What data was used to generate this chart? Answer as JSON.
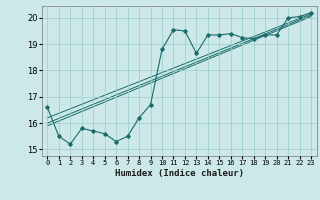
{
  "xlabel": "Humidex (Indice chaleur)",
  "bg_color": "#cce8e8",
  "grid_color": "#99cccc",
  "line_color": "#1a6b6b",
  "xlim": [
    -0.5,
    23.5
  ],
  "ylim": [
    14.75,
    20.45
  ],
  "yticks": [
    15,
    16,
    17,
    18,
    19,
    20
  ],
  "xticks": [
    0,
    1,
    2,
    3,
    4,
    5,
    6,
    7,
    8,
    9,
    10,
    11,
    12,
    13,
    14,
    15,
    16,
    17,
    18,
    19,
    20,
    21,
    22,
    23
  ],
  "line1_x": [
    0,
    1,
    2,
    3,
    4,
    5,
    6,
    7,
    8,
    9,
    10,
    11,
    12,
    13,
    14,
    15,
    16,
    17,
    18,
    19,
    20,
    21,
    22,
    23
  ],
  "line1_y": [
    16.6,
    15.5,
    15.2,
    15.8,
    15.7,
    15.6,
    15.3,
    15.5,
    16.2,
    16.7,
    18.8,
    19.55,
    19.5,
    18.65,
    19.35,
    19.35,
    19.4,
    19.25,
    19.2,
    19.35,
    19.35,
    20.0,
    20.05,
    20.2
  ],
  "line2_x": [
    0,
    23
  ],
  "line2_y": [
    16.0,
    20.1
  ],
  "line3_x": [
    0,
    23
  ],
  "line3_y": [
    16.2,
    20.15
  ],
  "line4_x": [
    0,
    23
  ],
  "line4_y": [
    15.9,
    20.05
  ]
}
